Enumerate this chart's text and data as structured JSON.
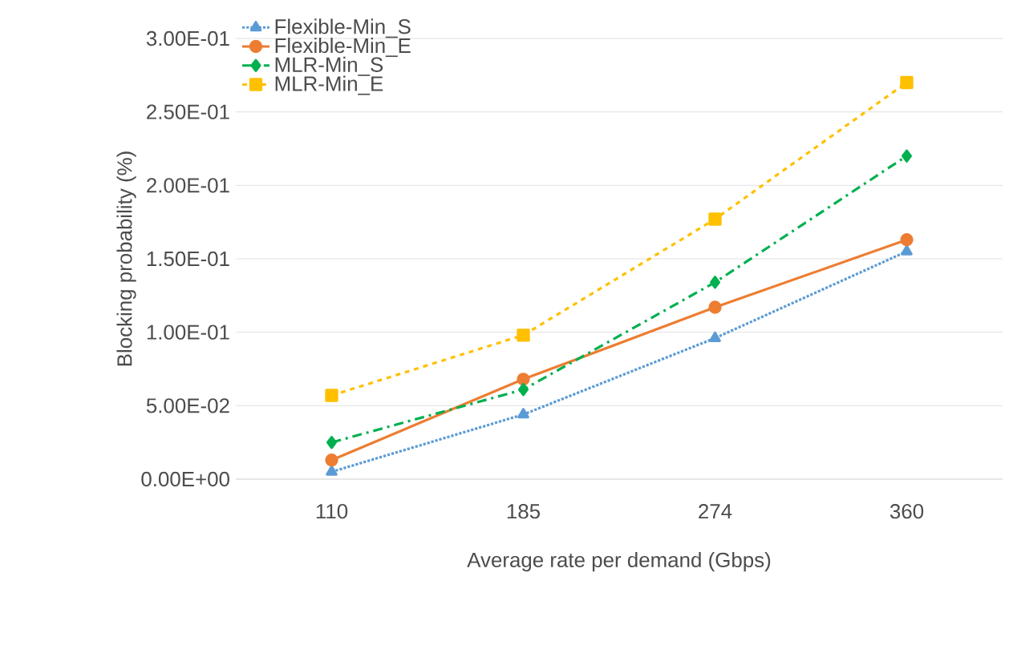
{
  "chart_data": {
    "type": "line",
    "xlabel": "Average rate per demand (Gbps)",
    "ylabel": "Blocking probability (%)",
    "categories": [
      "110",
      "185",
      "274",
      "360"
    ],
    "ylim": [
      0,
      0.3
    ],
    "yticks": [
      {
        "value": 0,
        "label": "0.00E+00"
      },
      {
        "value": 0.05,
        "label": "5.00E-02"
      },
      {
        "value": 0.1,
        "label": "1.00E-01"
      },
      {
        "value": 0.15,
        "label": "1.50E-01"
      },
      {
        "value": 0.2,
        "label": "2.00E-01"
      },
      {
        "value": 0.25,
        "label": "2.50E-01"
      },
      {
        "value": 0.3,
        "label": "3.00E-01"
      }
    ],
    "grid": "y",
    "legend": "top left",
    "series": [
      {
        "name": "Flexible-Min_S",
        "color": "#5b9bd5",
        "marker": "triangle",
        "line_style": "dotted",
        "values": [
          0.005,
          0.044,
          0.096,
          0.155
        ]
      },
      {
        "name": "Flexible-Min_E",
        "color": "#ed7d31",
        "marker": "circle",
        "line_style": "solid",
        "values": [
          0.013,
          0.068,
          0.117,
          0.163
        ]
      },
      {
        "name": "MLR-Min_S",
        "color": "#00b050",
        "marker": "diamond",
        "line_style": "dashed",
        "values": [
          0.025,
          0.061,
          0.134,
          0.22
        ]
      },
      {
        "name": "MLR-Min_E",
        "color": "#ffc000",
        "marker": "square",
        "line_style": "dashed",
        "values": [
          0.057,
          0.098,
          0.177,
          0.27
        ]
      }
    ]
  }
}
